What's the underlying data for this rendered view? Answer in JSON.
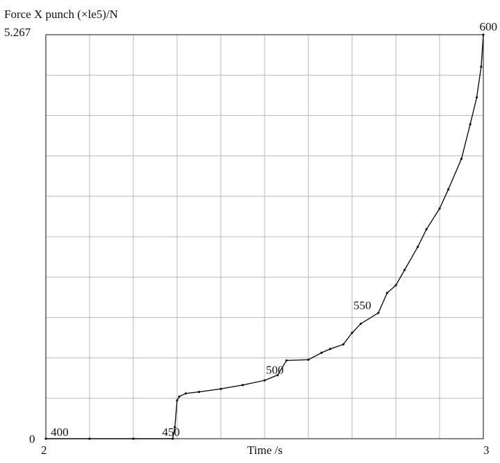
{
  "chart_data": {
    "type": "line",
    "ylabel": "Force X  punch (×le5)/N",
    "xlabel": "Time   /s",
    "xlim": [
      2,
      3
    ],
    "ylim": [
      0,
      5.267
    ],
    "x_tick_labels": [
      "2",
      "3"
    ],
    "y_tick_labels": [
      "0",
      "5.267"
    ],
    "grid": true,
    "step_labels": [
      {
        "text": "400",
        "x": 2.005,
        "y": 0.0
      },
      {
        "text": "450",
        "x": 2.3,
        "y": 0.0
      },
      {
        "text": "500",
        "x": 2.5,
        "y": 0.83
      },
      {
        "text": "550",
        "x": 2.7,
        "y": 1.67
      },
      {
        "text": "600",
        "x": 3.0,
        "y": 5.267
      }
    ],
    "series": [
      {
        "x": [
          2.0,
          2.1,
          2.2,
          2.29,
          2.295,
          2.3,
          2.305,
          2.32,
          2.35,
          2.4,
          2.45,
          2.5,
          2.53,
          2.55,
          2.6,
          2.63,
          2.65,
          2.68,
          2.7,
          2.72,
          2.76,
          2.78,
          2.8,
          2.82,
          2.85,
          2.87,
          2.9,
          2.92,
          2.95,
          2.97,
          2.985,
          2.995,
          3.0
        ],
        "y": [
          0.0,
          0.0,
          0.0,
          0.0,
          0.15,
          0.5,
          0.55,
          0.59,
          0.61,
          0.65,
          0.7,
          0.76,
          0.83,
          1.02,
          1.03,
          1.12,
          1.17,
          1.23,
          1.38,
          1.5,
          1.64,
          1.9,
          2.0,
          2.2,
          2.5,
          2.73,
          3.0,
          3.25,
          3.65,
          4.1,
          4.45,
          4.85,
          5.267
        ]
      }
    ]
  }
}
